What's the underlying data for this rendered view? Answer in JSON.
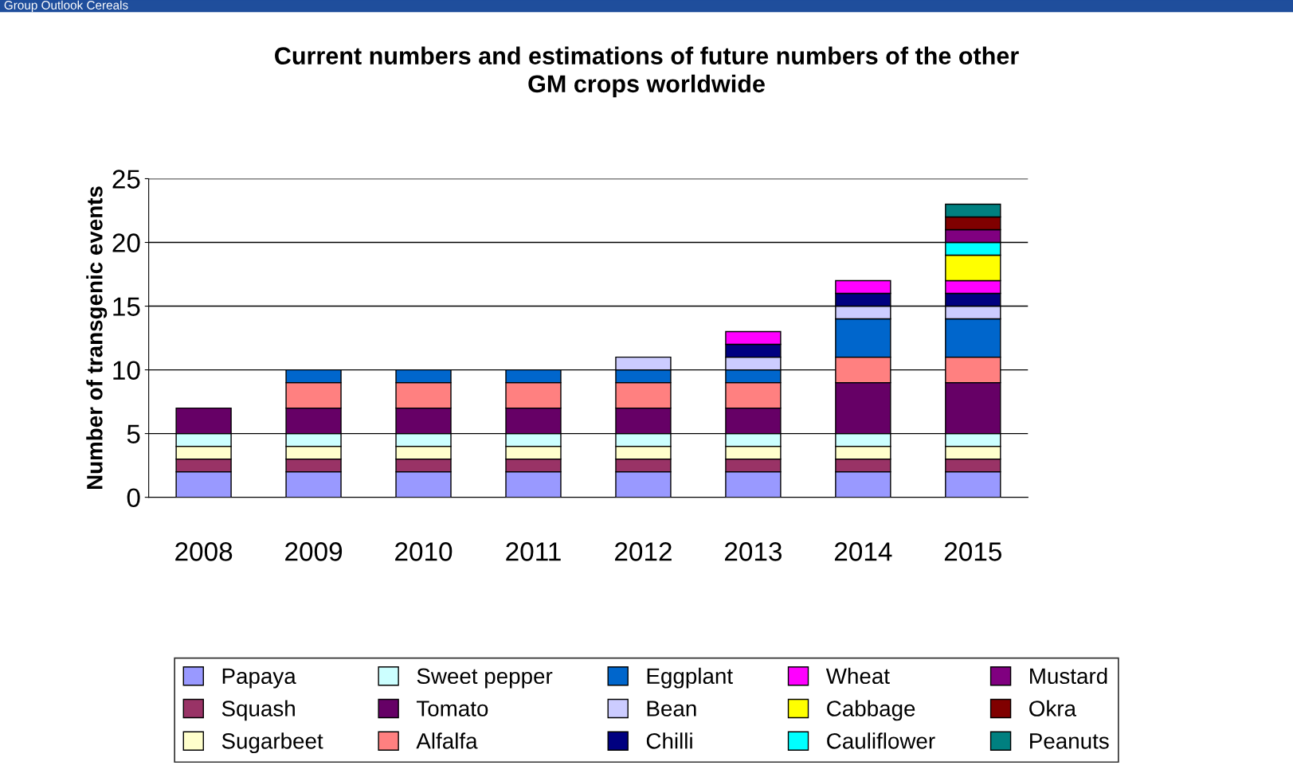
{
  "chart_data": {
    "type": "bar",
    "stacked": true,
    "title": "Current numbers and estimations of future numbers of the other\nGM crops worldwide",
    "ylabel": "Number of transgenic events",
    "annotations": [
      "Group Outlook Cereals"
    ],
    "categories": [
      "2008",
      "2009",
      "2010",
      "2011",
      "2012",
      "2013",
      "2014",
      "2015"
    ],
    "series": [
      {
        "name": "Papaya",
        "color": "#9999ff",
        "values": [
          2,
          2,
          2,
          2,
          2,
          2,
          2,
          2
        ]
      },
      {
        "name": "Squash",
        "color": "#993366",
        "values": [
          1,
          1,
          1,
          1,
          1,
          1,
          1,
          1
        ]
      },
      {
        "name": "Sugarbeet",
        "color": "#ffffcc",
        "values": [
          1,
          1,
          1,
          1,
          1,
          1,
          1,
          1
        ]
      },
      {
        "name": "Sweet pepper",
        "color": "#ccffff",
        "values": [
          1,
          1,
          1,
          1,
          1,
          1,
          1,
          1
        ]
      },
      {
        "name": "Tomato",
        "color": "#660066",
        "values": [
          2,
          2,
          2,
          2,
          2,
          2,
          4,
          4
        ]
      },
      {
        "name": "Alfalfa",
        "color": "#ff8080",
        "values": [
          null,
          2,
          2,
          2,
          2,
          2,
          2,
          2
        ]
      },
      {
        "name": "Eggplant",
        "color": "#0066cc",
        "values": [
          null,
          1,
          1,
          1,
          1,
          1,
          3,
          3
        ]
      },
      {
        "name": "Bean",
        "color": "#ccccff",
        "values": [
          null,
          null,
          null,
          null,
          1,
          1,
          1,
          1
        ]
      },
      {
        "name": "Chilli",
        "color": "#000080",
        "values": [
          null,
          null,
          null,
          null,
          null,
          1,
          1,
          1
        ]
      },
      {
        "name": "Wheat",
        "color": "#ff00ff",
        "values": [
          null,
          null,
          null,
          null,
          null,
          1,
          1,
          1
        ]
      },
      {
        "name": "Cabbage",
        "color": "#ffff00",
        "values": [
          null,
          null,
          null,
          null,
          null,
          null,
          null,
          2
        ]
      },
      {
        "name": "Cauliflower",
        "color": "#00ffff",
        "values": [
          null,
          null,
          null,
          null,
          null,
          null,
          null,
          1
        ]
      },
      {
        "name": "Mustard",
        "color": "#800080",
        "values": [
          null,
          null,
          null,
          null,
          null,
          null,
          null,
          1
        ]
      },
      {
        "name": "Okra",
        "color": "#800000",
        "values": [
          null,
          null,
          null,
          null,
          null,
          null,
          null,
          1
        ]
      },
      {
        "name": "Peanuts",
        "color": "#008080",
        "values": [
          null,
          null,
          null,
          null,
          null,
          null,
          null,
          1
        ]
      }
    ],
    "ylim": [
      0,
      25
    ],
    "yticks": [
      0,
      5,
      10,
      15,
      20,
      25
    ],
    "grid": "y",
    "legend": "bottom"
  }
}
